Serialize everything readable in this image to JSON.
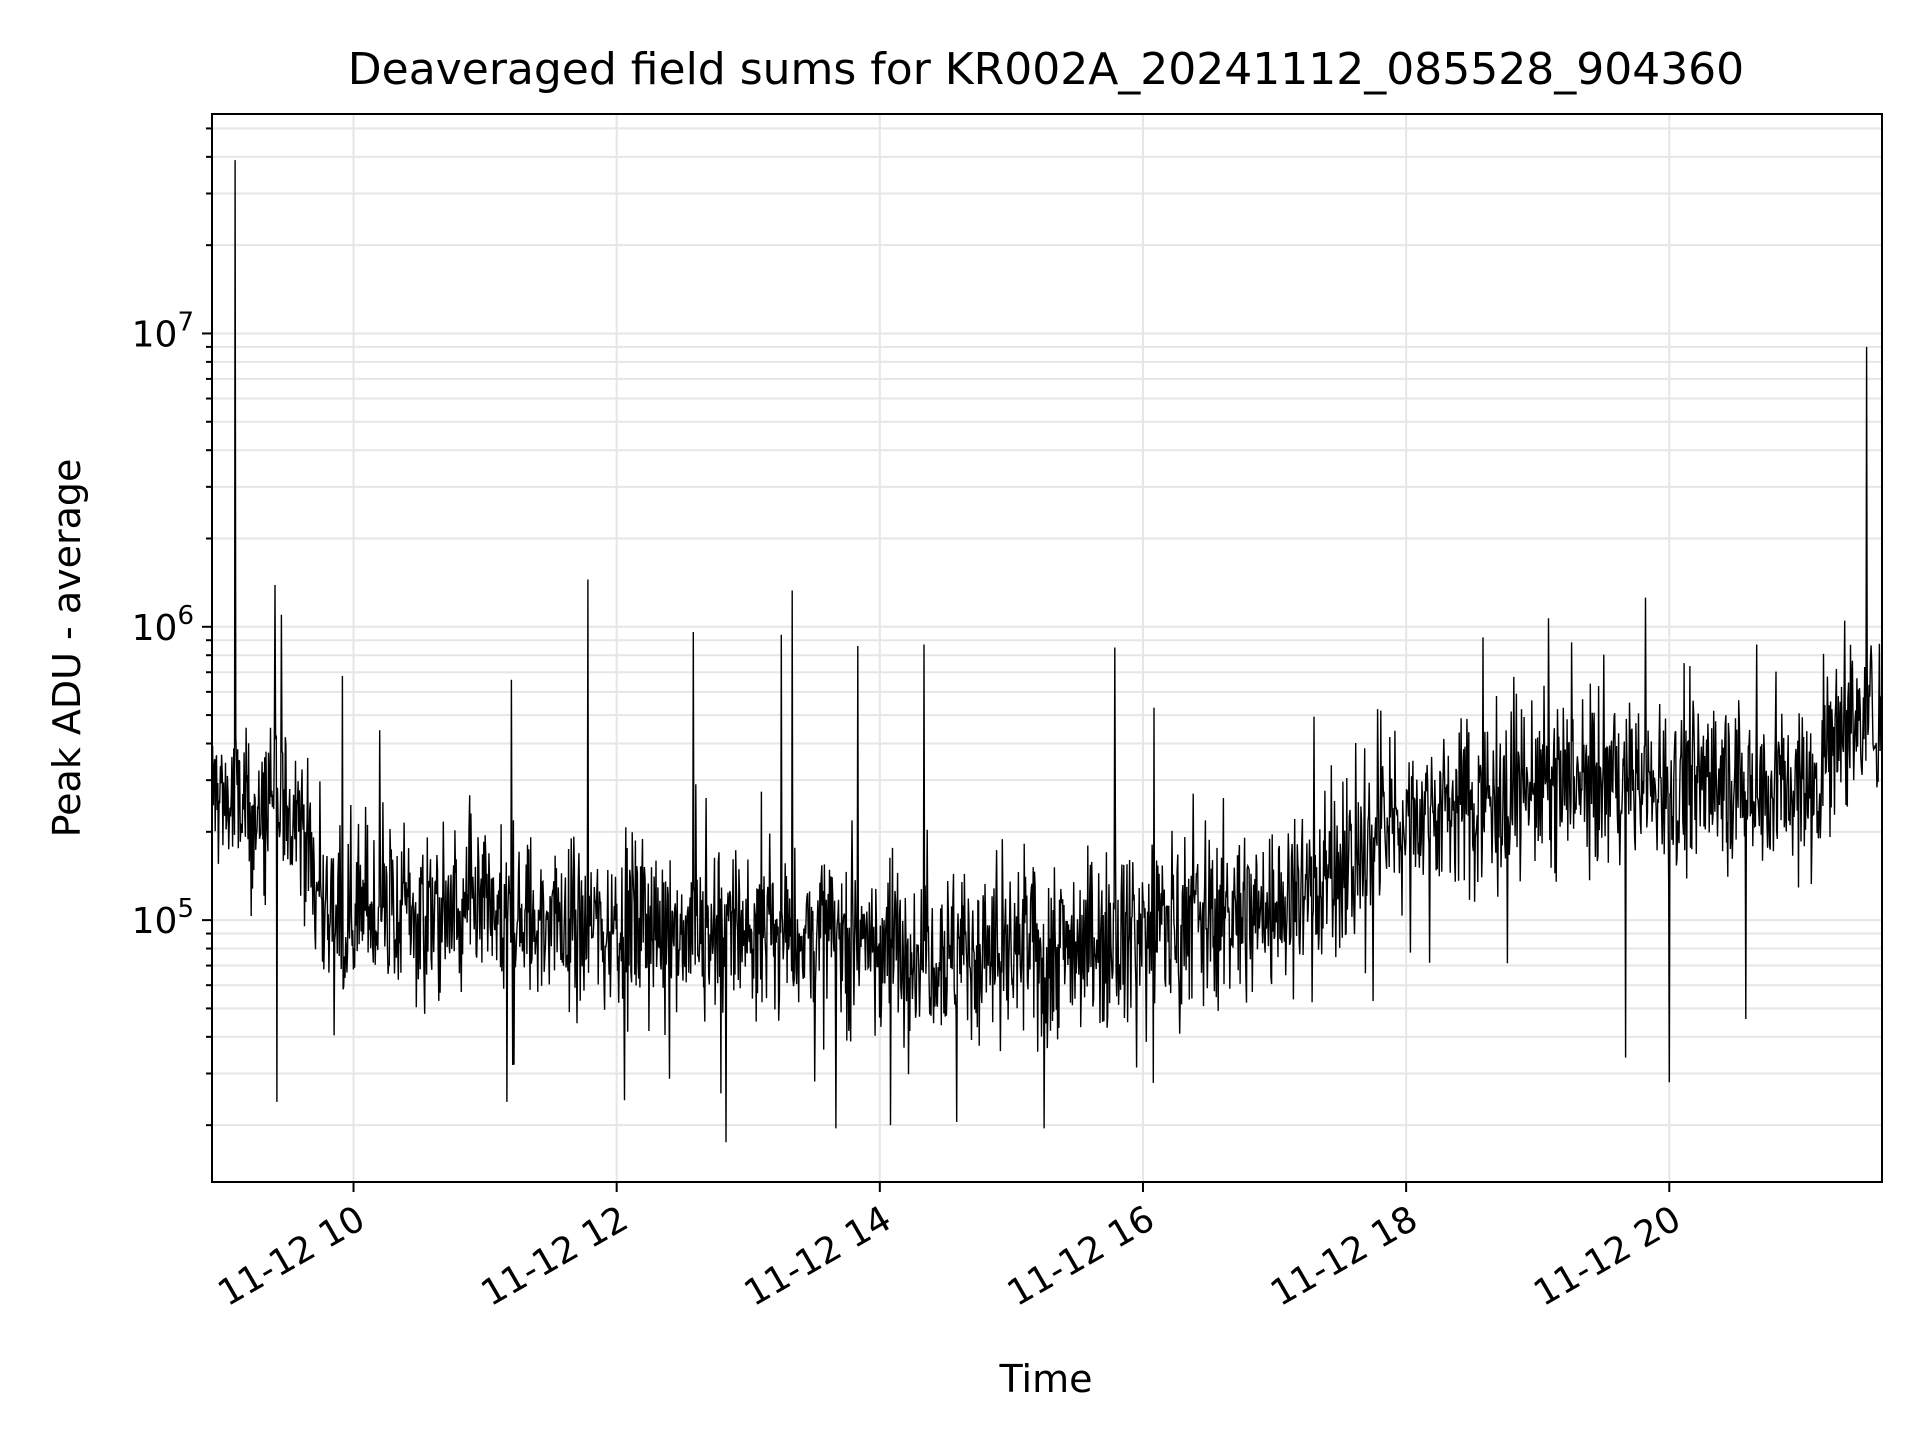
{
  "chart_data": {
    "type": "line",
    "title": "Deaveraged field sums for KR002A_20241112_085528_904360",
    "xlabel": "Time",
    "ylabel": "Peak ADU - average",
    "yscale": "log",
    "grid": true,
    "legend": "none",
    "line_color": "#000000",
    "grid_color": "#e6e6e6",
    "xlim": [
      "2024-11-12T08:55:28",
      "2024-11-12T21:37:00"
    ],
    "ylim": [
      12800,
      56000000
    ],
    "x_ticks": [
      {
        "value": "2024-11-12T10:00",
        "label": "11-12 10"
      },
      {
        "value": "2024-11-12T12:00",
        "label": "11-12 12"
      },
      {
        "value": "2024-11-12T14:00",
        "label": "11-12 14"
      },
      {
        "value": "2024-11-12T16:00",
        "label": "11-12 16"
      },
      {
        "value": "2024-11-12T18:00",
        "label": "11-12 18"
      },
      {
        "value": "2024-11-12T20:00",
        "label": "11-12 20"
      }
    ],
    "y_ticks": [
      {
        "value": 100000,
        "base": "10",
        "exp": "5"
      },
      {
        "value": 1000000,
        "base": "10",
        "exp": "6"
      },
      {
        "value": 10000000,
        "base": "10",
        "exp": "7"
      }
    ],
    "baseline": [
      {
        "t": "2024-11-12T08:55",
        "v": 280000
      },
      {
        "t": "2024-11-12T09:15",
        "v": 220000
      },
      {
        "t": "2024-11-12T09:35",
        "v": 250000
      },
      {
        "t": "2024-11-12T09:45",
        "v": 110000
      },
      {
        "t": "2024-11-12T11:00",
        "v": 100000
      },
      {
        "t": "2024-11-12T12:30",
        "v": 95000
      },
      {
        "t": "2024-11-12T14:00",
        "v": 85000
      },
      {
        "t": "2024-11-12T15:00",
        "v": 75000
      },
      {
        "t": "2024-11-12T16:00",
        "v": 95000
      },
      {
        "t": "2024-11-12T17:00",
        "v": 110000
      },
      {
        "t": "2024-11-12T17:30",
        "v": 150000
      },
      {
        "t": "2024-11-12T18:00",
        "v": 230000
      },
      {
        "t": "2024-11-12T19:00",
        "v": 290000
      },
      {
        "t": "2024-11-12T20:00",
        "v": 300000
      },
      {
        "t": "2024-11-12T21:05",
        "v": 280000
      },
      {
        "t": "2024-11-12T21:15",
        "v": 450000
      },
      {
        "t": "2024-11-12T21:37",
        "v": 500000
      }
    ],
    "spikes": [
      {
        "t": "2024-11-12T09:06",
        "v": 39000000
      },
      {
        "t": "2024-11-12T09:27",
        "v": 1100000
      },
      {
        "t": "2024-11-12T09:55",
        "v": 680000
      },
      {
        "t": "2024-11-12T11:12",
        "v": 660000
      },
      {
        "t": "2024-11-12T11:47",
        "v": 1450000
      },
      {
        "t": "2024-11-12T12:35",
        "v": 960000
      },
      {
        "t": "2024-11-12T13:15",
        "v": 940000
      },
      {
        "t": "2024-11-12T13:20",
        "v": 1330000
      },
      {
        "t": "2024-11-12T13:50",
        "v": 860000
      },
      {
        "t": "2024-11-12T14:20",
        "v": 870000
      },
      {
        "t": "2024-11-12T15:47",
        "v": 850000
      },
      {
        "t": "2024-11-12T16:05",
        "v": 530000
      },
      {
        "t": "2024-11-12T18:35",
        "v": 920000
      },
      {
        "t": "2024-11-12T19:05",
        "v": 1070000
      },
      {
        "t": "2024-11-12T20:40",
        "v": 870000
      },
      {
        "t": "2024-11-12T21:20",
        "v": 1050000
      },
      {
        "t": "2024-11-12T21:30",
        "v": 9000000
      }
    ],
    "dips": [
      {
        "t": "2024-11-12T09:25",
        "v": 24000
      },
      {
        "t": "2024-11-12T11:10",
        "v": 24000
      },
      {
        "t": "2024-11-12T12:50",
        "v": 17500
      },
      {
        "t": "2024-11-12T13:40",
        "v": 19500
      },
      {
        "t": "2024-11-12T14:05",
        "v": 20000
      },
      {
        "t": "2024-11-12T14:35",
        "v": 20500
      },
      {
        "t": "2024-11-12T15:15",
        "v": 19500
      },
      {
        "t": "2024-11-12T17:45",
        "v": 53000
      },
      {
        "t": "2024-11-12T19:40",
        "v": 34000
      },
      {
        "t": "2024-11-12T20:00",
        "v": 28000
      },
      {
        "t": "2024-11-12T20:35",
        "v": 46000
      }
    ]
  }
}
